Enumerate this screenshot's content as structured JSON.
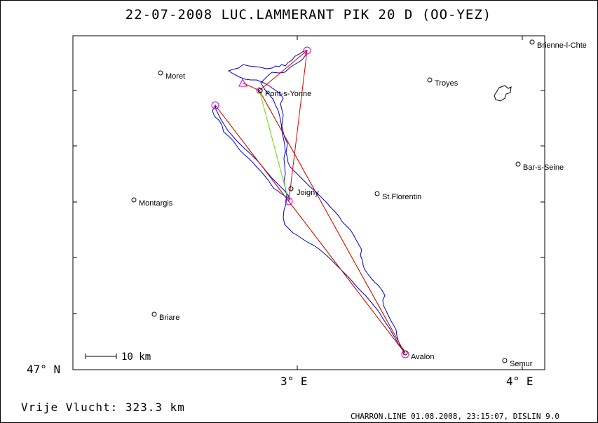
{
  "title": "22-07-2008   LUC.LAMMERANT   PIK 20 D (OO-YEZ)",
  "axis": {
    "y_label": "47° N",
    "x_labels": [
      "3° E",
      "4° E"
    ]
  },
  "scale_label": "10 km",
  "towns": [
    {
      "name": "Brienne-l-Chte"
    },
    {
      "name": "Moret"
    },
    {
      "name": "Troyes"
    },
    {
      "name": "Pont-s-Yonne"
    },
    {
      "name": "Bar-s-Seine"
    },
    {
      "name": "Montargis"
    },
    {
      "name": "Joigny"
    },
    {
      "name": "St.Florentin"
    },
    {
      "name": "Briare"
    },
    {
      "name": "Avalon"
    },
    {
      "name": "Semur"
    }
  ],
  "distance_label": "Vrije Vlucht:  323.3 km",
  "footer": "CHARRON.LINE 01.08.2008, 23:15:07, DISLIN 9.0",
  "colors": {
    "track": "#0000cc",
    "route": "#dd0000",
    "alt_route": "#66dd00",
    "turnpoint": "#cc00cc",
    "frame": "#000000"
  }
}
